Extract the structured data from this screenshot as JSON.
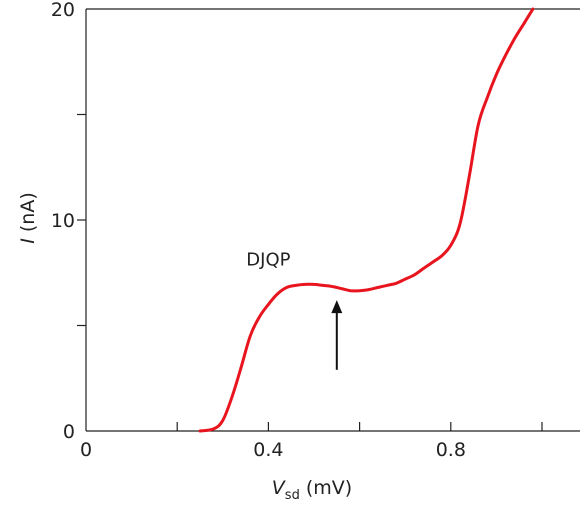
{
  "chart_data": {
    "type": "line",
    "title": "",
    "xlabel": {
      "main": "V",
      "sub": "sd",
      "unit": " (mV)"
    },
    "ylabel": {
      "main": "I",
      "unit": " (nA)"
    },
    "xlim": [
      0,
      1.07
    ],
    "ylim": [
      0,
      20
    ],
    "x_ticks": [
      {
        "value": 0,
        "label": "0"
      },
      {
        "value": 0.2,
        "label": ""
      },
      {
        "value": 0.4,
        "label": "0.4"
      },
      {
        "value": 0.6,
        "label": ""
      },
      {
        "value": 0.8,
        "label": "0.8"
      },
      {
        "value": 1.0,
        "label": ""
      }
    ],
    "y_ticks": [
      {
        "value": 0,
        "label": "0"
      },
      {
        "value": 5,
        "label": ""
      },
      {
        "value": 10,
        "label": "10"
      },
      {
        "value": 15,
        "label": ""
      },
      {
        "value": 20,
        "label": "20"
      }
    ],
    "grid": false,
    "series": [
      {
        "color": "#e8141e",
        "x": [
          0.25,
          0.28,
          0.3,
          0.32,
          0.34,
          0.36,
          0.38,
          0.4,
          0.42,
          0.44,
          0.46,
          0.48,
          0.5,
          0.52,
          0.54,
          0.56,
          0.58,
          0.6,
          0.62,
          0.64,
          0.66,
          0.68,
          0.7,
          0.72,
          0.74,
          0.76,
          0.78,
          0.8,
          0.82,
          0.84,
          0.86,
          0.88,
          0.9,
          0.92,
          0.94,
          0.96,
          0.98
        ],
        "y": [
          0.0,
          0.1,
          0.5,
          1.6,
          3.0,
          4.5,
          5.4,
          6.0,
          6.5,
          6.8,
          6.9,
          6.95,
          6.95,
          6.9,
          6.85,
          6.75,
          6.65,
          6.65,
          6.7,
          6.8,
          6.9,
          7.0,
          7.2,
          7.4,
          7.7,
          8.0,
          8.3,
          8.8,
          9.8,
          12.0,
          14.5,
          15.8,
          16.9,
          17.8,
          18.6,
          19.3,
          20.0
        ]
      }
    ],
    "annotations": [
      {
        "text": "DJQP",
        "x": 0.4,
        "y": 7.85
      },
      {
        "type": "arrow",
        "x": 0.55,
        "y_from": 2.9,
        "y_to": 6.2
      }
    ]
  }
}
